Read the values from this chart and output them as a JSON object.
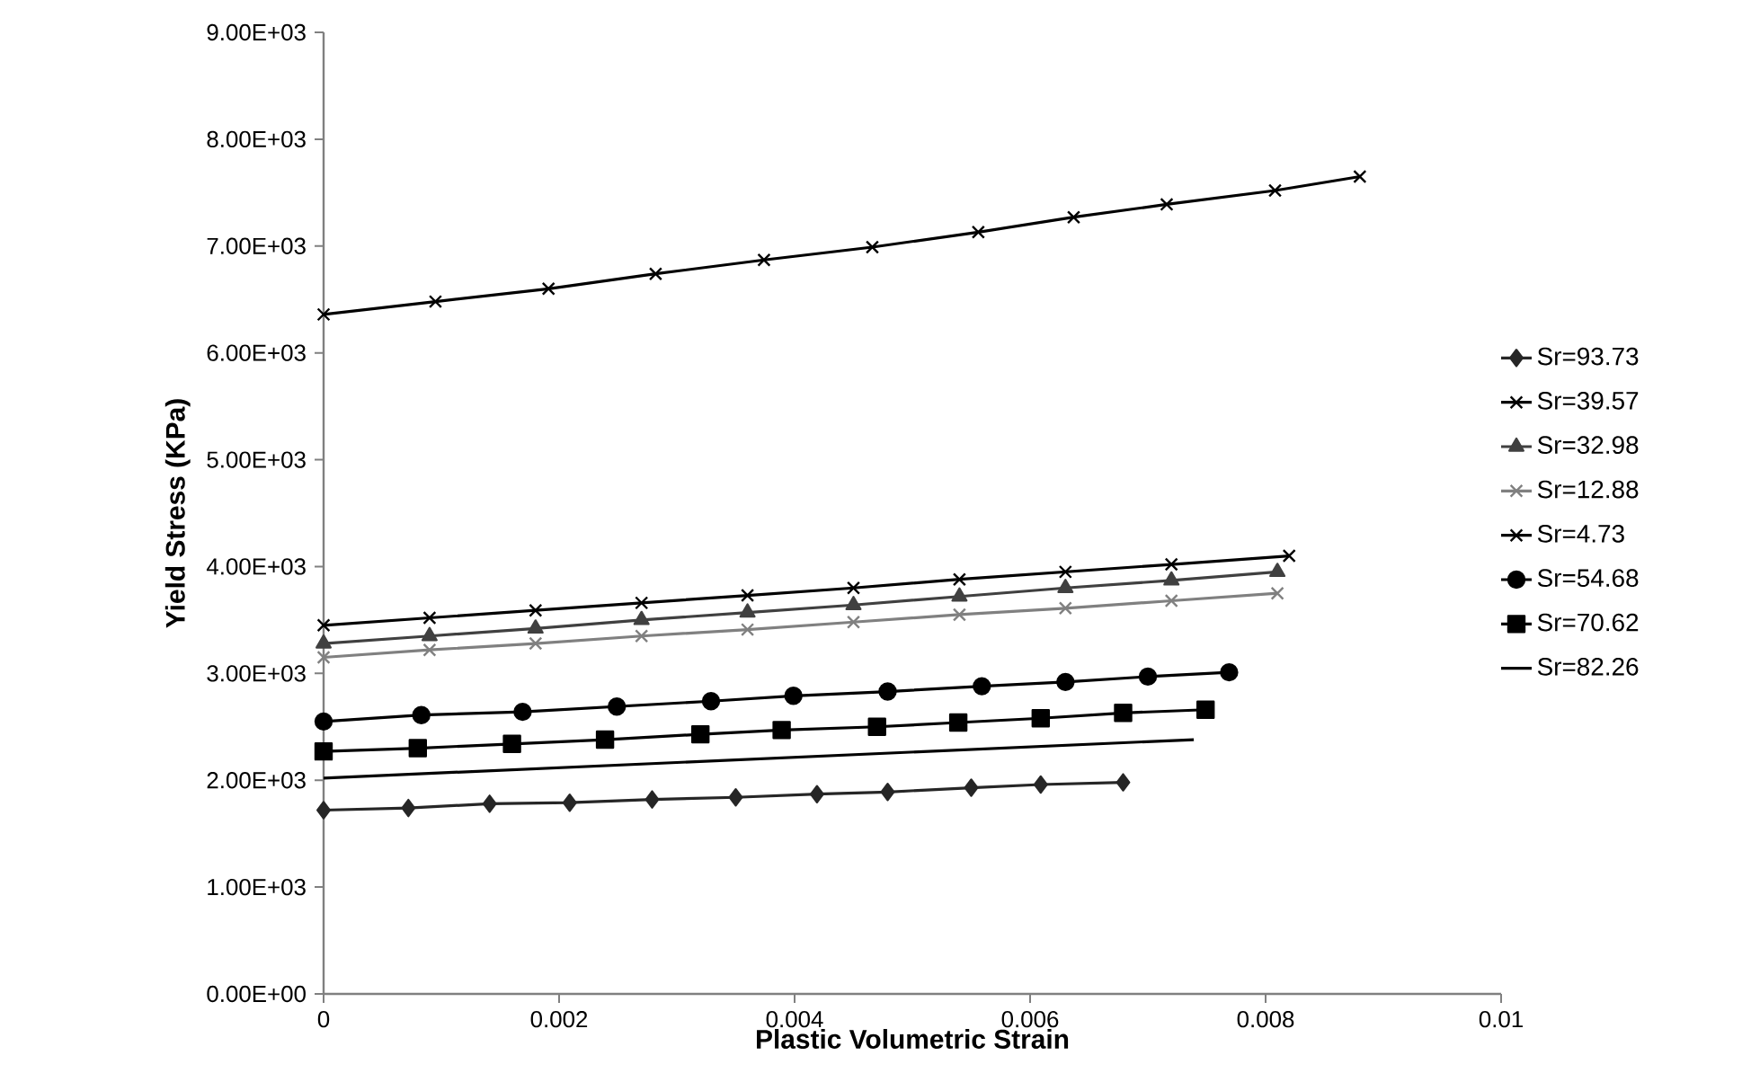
{
  "chart_data": {
    "type": "line",
    "xlabel": "Plastic Volumetric Strain",
    "ylabel": "Yield Stress (KPa)",
    "xlim": [
      0,
      0.01
    ],
    "ylim": [
      0,
      9000
    ],
    "xticks": [
      0,
      0.002,
      0.004,
      0.006,
      0.008,
      0.01
    ],
    "yticks": [
      {
        "value": 0,
        "label": "0.00E+00"
      },
      {
        "value": 1000,
        "label": "1.00E+03"
      },
      {
        "value": 2000,
        "label": "2.00E+03"
      },
      {
        "value": 3000,
        "label": "3.00E+03"
      },
      {
        "value": 4000,
        "label": "4.00E+03"
      },
      {
        "value": 5000,
        "label": "5.00E+03"
      },
      {
        "value": 6000,
        "label": "6.00E+03"
      },
      {
        "value": 7000,
        "label": "7.00E+03"
      },
      {
        "value": 8000,
        "label": "8.00E+03"
      },
      {
        "value": 9000,
        "label": "9.00E+03"
      }
    ],
    "grid": false,
    "legend": "right",
    "line_style": "solid",
    "series": [
      {
        "name": "Sr=93.73",
        "color": "#262626",
        "marker": "diamond",
        "x": [
          0,
          0.00072,
          0.00141,
          0.00209,
          0.00279,
          0.0035,
          0.00419,
          0.00479,
          0.0055,
          0.00609,
          0.00679
        ],
        "values": [
          1720,
          1740,
          1780,
          1790,
          1820,
          1840,
          1870,
          1890,
          1930,
          1960,
          1980
        ]
      },
      {
        "name": "Sr=39.57",
        "color": "#000000",
        "marker": "cross",
        "x": [
          0,
          0.0009,
          0.0018,
          0.0027,
          0.0036,
          0.0045,
          0.0054,
          0.0063,
          0.0072,
          0.0082
        ],
        "values": [
          3450,
          3520,
          3590,
          3660,
          3730,
          3800,
          3880,
          3950,
          4020,
          4100
        ]
      },
      {
        "name": "Sr=32.98",
        "color": "#404040",
        "marker": "triangle",
        "x": [
          0,
          0.0009,
          0.0018,
          0.0027,
          0.0036,
          0.0045,
          0.0054,
          0.0063,
          0.0072,
          0.0081
        ],
        "values": [
          3280,
          3350,
          3420,
          3500,
          3570,
          3640,
          3720,
          3800,
          3870,
          3950
        ]
      },
      {
        "name": "Sr=12.88",
        "color": "#808080",
        "marker": "cross",
        "x": [
          0,
          0.0009,
          0.0018,
          0.0027,
          0.0036,
          0.0045,
          0.0054,
          0.0063,
          0.0072,
          0.0081
        ],
        "values": [
          3150,
          3220,
          3280,
          3350,
          3410,
          3480,
          3550,
          3610,
          3680,
          3750
        ]
      },
      {
        "name": "Sr=4.73",
        "color": "#000000",
        "marker": "cross",
        "x": [
          0,
          0.00095,
          0.00191,
          0.00282,
          0.00374,
          0.00466,
          0.00556,
          0.00637,
          0.00716,
          0.00808,
          0.0088
        ],
        "values": [
          6360,
          6480,
          6600,
          6740,
          6870,
          6990,
          7130,
          7270,
          7390,
          7520,
          7650
        ]
      },
      {
        "name": "Sr=54.68",
        "color": "#000000",
        "marker": "circle",
        "x": [
          0,
          0.00083,
          0.00169,
          0.00249,
          0.00329,
          0.00399,
          0.00479,
          0.00559,
          0.0063,
          0.007,
          0.00769
        ],
        "values": [
          2550,
          2610,
          2640,
          2690,
          2740,
          2790,
          2830,
          2880,
          2920,
          2970,
          3010
        ]
      },
      {
        "name": "Sr=70.62",
        "color": "#000000",
        "marker": "square",
        "x": [
          0,
          0.0008,
          0.0016,
          0.00239,
          0.0032,
          0.00389,
          0.0047,
          0.00539,
          0.00609,
          0.00679,
          0.00749
        ],
        "values": [
          2270,
          2300,
          2340,
          2380,
          2430,
          2470,
          2500,
          2540,
          2580,
          2630,
          2660
        ]
      },
      {
        "name": "Sr=82.26",
        "color": "#000000",
        "marker": "none",
        "x": [
          0,
          0.00739
        ],
        "values": [
          2020,
          2380
        ]
      }
    ]
  }
}
